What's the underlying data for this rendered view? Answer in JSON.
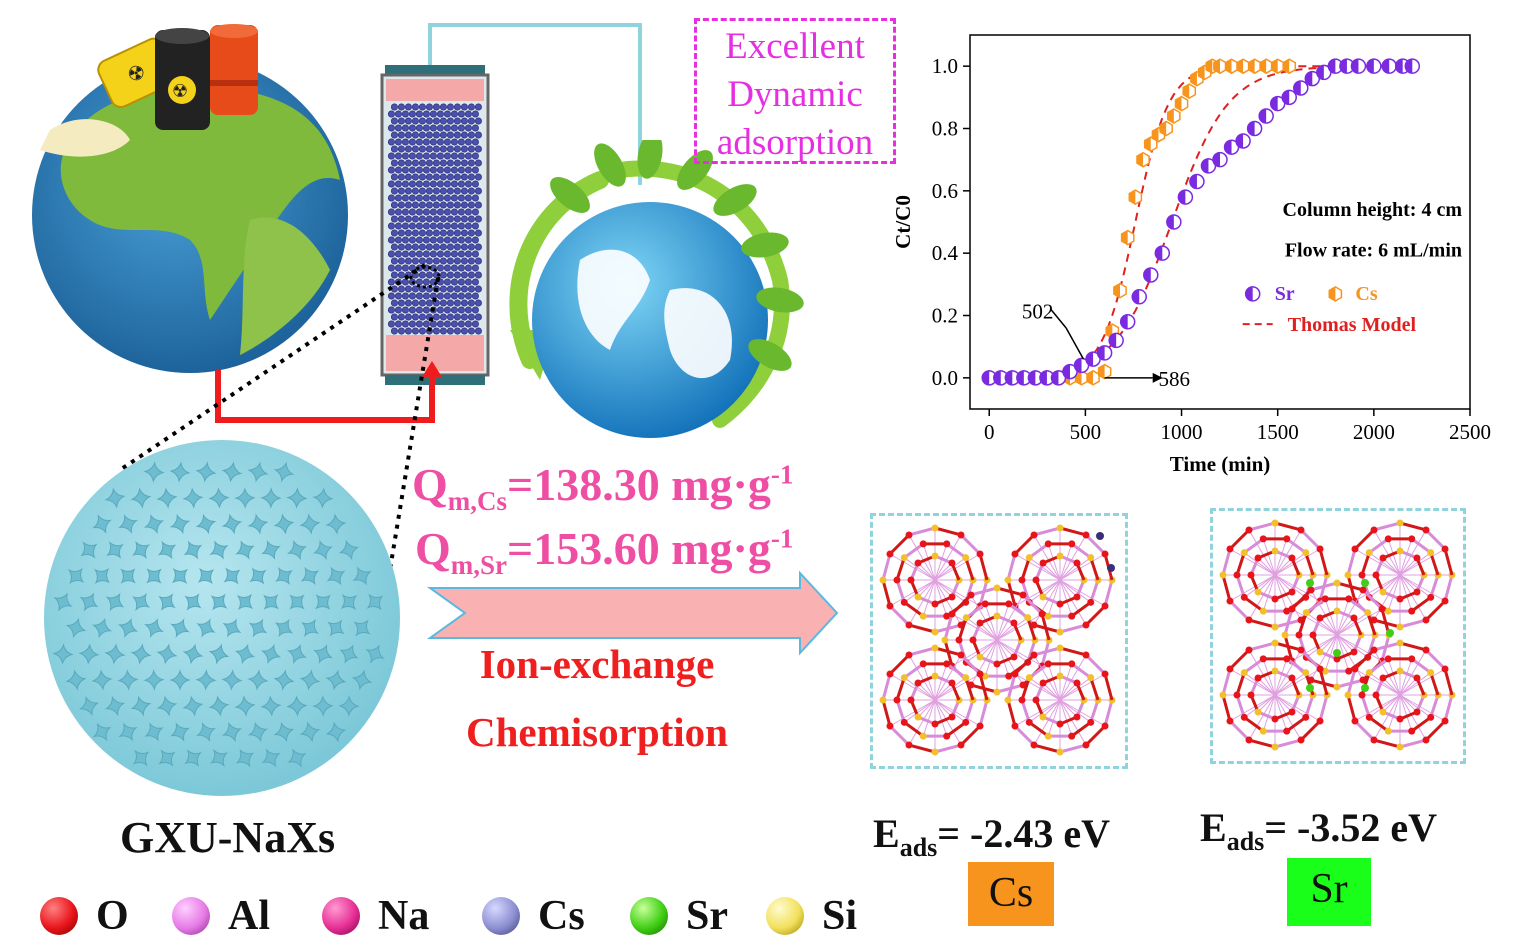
{
  "note_text": [
    "Excellent",
    "Dynamic",
    "adsorption"
  ],
  "capacity": {
    "cs": {
      "prefix": "Q",
      "sub": "m,Cs",
      "rest": "=138.30 mg·g",
      "sup": "-1"
    },
    "sr": {
      "prefix": "Q",
      "sub": "m,Sr",
      "rest": "=153.60 mg·g",
      "sup": "-1"
    }
  },
  "mechanism": [
    "Ion-exchange",
    "Chemisorption"
  ],
  "material_label": "GXU-NaXs",
  "adsorption_energy": {
    "cs": {
      "prefix": "E",
      "sub": "ads",
      "value": "= -2.43 eV",
      "tag": "Cs",
      "tag_color": "#f7941d"
    },
    "sr": {
      "prefix": "E",
      "sub": "ads",
      "value": "= -3.52 eV",
      "tag": "Sr",
      "tag_color": "#1aff1a"
    }
  },
  "atom_legend": [
    {
      "label": "O",
      "color": "#e8141a"
    },
    {
      "label": "Al",
      "color": "#e67ae6"
    },
    {
      "label": "Na",
      "color": "#e62e96"
    },
    {
      "label": "Cs",
      "color": "#8c8fd0"
    },
    {
      "label": "Sr",
      "color": "#3fcf14"
    },
    {
      "label": "Si",
      "color": "#f2e05a"
    }
  ],
  "colors": {
    "accent_pink": "#ee4fa4",
    "accent_red": "#ef1f1f",
    "magenta": "#e62fe0",
    "zeolite": "#8fd3e0"
  },
  "chart_data": {
    "type": "scatter",
    "xlabel": "Time (min)",
    "ylabel": "Ct/C0",
    "xlim": [
      -100,
      2500
    ],
    "ylim": [
      -0.1,
      1.1
    ],
    "xticks": [
      0,
      500,
      1000,
      1500,
      2000,
      2500
    ],
    "yticks": [
      0.0,
      0.2,
      0.4,
      0.6,
      0.8,
      1.0
    ],
    "annotations": [
      "Column height: 4 cm",
      "Flow rate: 6 mL/min",
      "502",
      "586"
    ],
    "series": [
      {
        "name": "Sr",
        "color": "#7a2be0",
        "marker": "half-circle",
        "x": [
          0,
          60,
          120,
          180,
          240,
          300,
          360,
          420,
          480,
          540,
          600,
          660,
          720,
          780,
          840,
          900,
          960,
          1020,
          1080,
          1140,
          1200,
          1260,
          1320,
          1380,
          1440,
          1500,
          1560,
          1620,
          1680,
          1740,
          1800,
          1860,
          1920,
          2000,
          2080,
          2150,
          2200
        ],
        "y": [
          0.0,
          0.0,
          0.0,
          0.0,
          0.0,
          0.0,
          0.0,
          0.02,
          0.04,
          0.06,
          0.08,
          0.12,
          0.18,
          0.26,
          0.33,
          0.4,
          0.5,
          0.58,
          0.63,
          0.68,
          0.7,
          0.74,
          0.76,
          0.8,
          0.84,
          0.88,
          0.9,
          0.93,
          0.96,
          0.98,
          1.0,
          1.0,
          1.0,
          1.0,
          1.0,
          1.0,
          1.0
        ]
      },
      {
        "name": "Cs",
        "color": "#f7941d",
        "marker": "half-hexagon",
        "x": [
          0,
          60,
          120,
          180,
          240,
          300,
          360,
          420,
          480,
          540,
          600,
          640,
          680,
          720,
          760,
          800,
          840,
          880,
          920,
          960,
          1000,
          1040,
          1080,
          1120,
          1160,
          1200,
          1260,
          1320,
          1380,
          1440,
          1500,
          1560
        ],
        "y": [
          0.0,
          0.0,
          0.0,
          0.0,
          0.0,
          0.0,
          0.0,
          0.0,
          0.0,
          0.0,
          0.02,
          0.15,
          0.28,
          0.45,
          0.58,
          0.7,
          0.75,
          0.78,
          0.8,
          0.84,
          0.88,
          0.92,
          0.96,
          0.98,
          1.0,
          1.0,
          1.0,
          1.0,
          1.0,
          1.0,
          1.0,
          1.0
        ]
      },
      {
        "name": "Thomas Model",
        "color": "#e02020",
        "line": "dashed",
        "x": [],
        "y": []
      }
    ],
    "legend_position": "right"
  }
}
